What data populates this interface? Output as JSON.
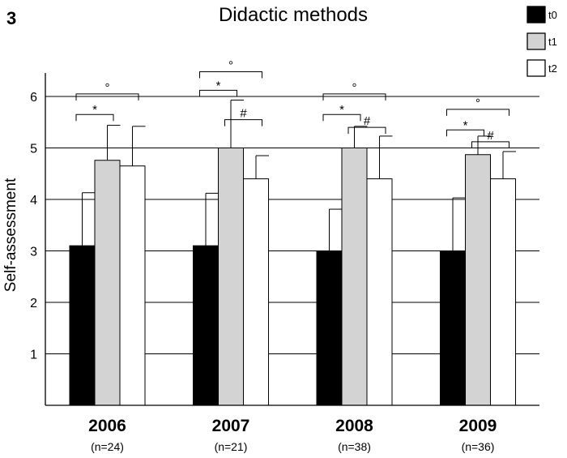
{
  "panel_label": "3",
  "chart_data": {
    "type": "bar",
    "title": "Didactic methods",
    "ylabel": "Self-assessment",
    "xlabel": "",
    "ylim": [
      0,
      6.4
    ],
    "yticks": [
      1,
      2,
      3,
      4,
      5,
      6
    ],
    "grid": true,
    "legend_position": "top-right",
    "categories": [
      "2006",
      "2007",
      "2008",
      "2009"
    ],
    "sample_sizes": [
      "(n=24)",
      "(n=21)",
      "(n=38)",
      "(n=36)"
    ],
    "series": [
      {
        "name": "t0",
        "color": "#000000",
        "values": [
          3.1,
          3.1,
          3.0,
          3.0
        ],
        "errors": [
          1.03,
          1.02,
          0.81,
          1.03
        ]
      },
      {
        "name": "t1",
        "color": "#d3d3d3",
        "values": [
          4.76,
          5.0,
          5.0,
          4.87
        ],
        "errors": [
          0.68,
          0.93,
          0.42,
          0.36
        ]
      },
      {
        "name": "t2",
        "color": "#ffffff",
        "values": [
          4.65,
          4.4,
          4.4,
          4.4
        ],
        "errors": [
          0.77,
          0.45,
          0.83,
          0.53
        ]
      }
    ],
    "significance": [
      {
        "category": 0,
        "from": 0,
        "to": 1,
        "symbol": "*",
        "level": 5.65
      },
      {
        "category": 0,
        "from": 0,
        "to": 2,
        "symbol": "°",
        "level": 6.05
      },
      {
        "category": 1,
        "from": 0,
        "to": 1,
        "symbol": "*",
        "level": 6.12
      },
      {
        "category": 1,
        "from": 0,
        "to": 2,
        "symbol": "°",
        "level": 6.48
      },
      {
        "category": 1,
        "from": 1,
        "to": 2,
        "symbol": "#",
        "level": 5.55
      },
      {
        "category": 2,
        "from": 0,
        "to": 1,
        "symbol": "*",
        "level": 5.65
      },
      {
        "category": 2,
        "from": 0,
        "to": 2,
        "symbol": "°",
        "level": 6.05
      },
      {
        "category": 2,
        "from": 1,
        "to": 2,
        "symbol": "#",
        "level": 5.4
      },
      {
        "category": 3,
        "from": 0,
        "to": 1,
        "symbol": "*",
        "level": 5.35
      },
      {
        "category": 3,
        "from": 0,
        "to": 2,
        "symbol": "°",
        "level": 5.75
      },
      {
        "category": 3,
        "from": 1,
        "to": 2,
        "symbol": "#",
        "level": 5.12
      }
    ]
  }
}
